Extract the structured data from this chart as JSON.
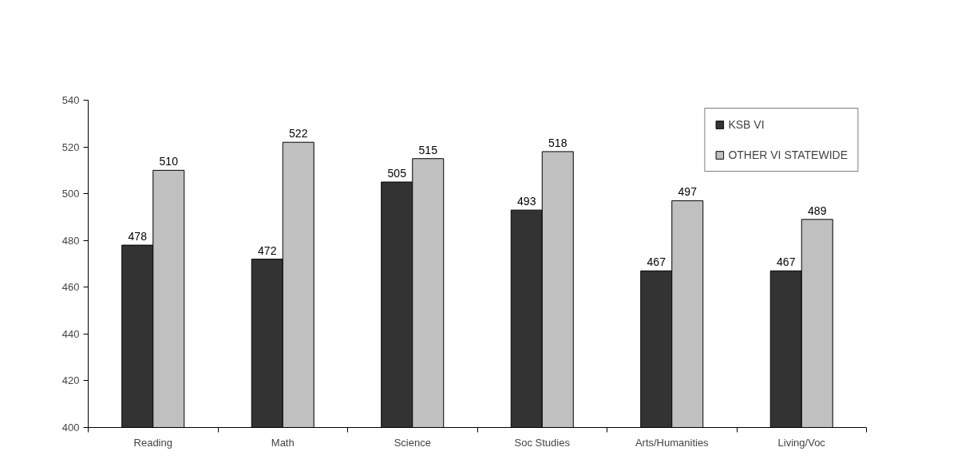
{
  "chart_data": {
    "type": "bar",
    "categories": [
      "Reading",
      "Math",
      "Science",
      "Soc Studies",
      "Arts/Humanities",
      "Living/Voc"
    ],
    "series": [
      {
        "name": "KSB VI",
        "color": "#333333",
        "values": [
          478,
          472,
          505,
          493,
          467,
          467
        ]
      },
      {
        "name": "OTHER VI STATEWIDE",
        "color": "#c0c0c0",
        "values": [
          510,
          522,
          515,
          518,
          497,
          489
        ]
      }
    ],
    "ylim": [
      400,
      540
    ],
    "yticks": [
      400,
      420,
      440,
      460,
      480,
      500,
      520,
      540
    ],
    "data_labels": true,
    "legend": "top right",
    "grid": false
  }
}
